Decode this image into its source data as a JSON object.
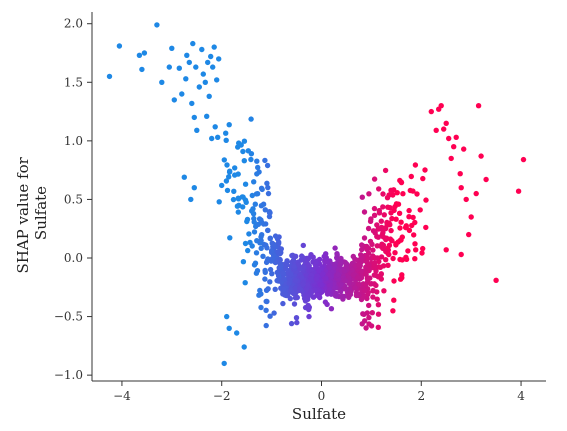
{
  "chart_data": {
    "type": "scatter",
    "title": "",
    "xlabel": "Sulfate",
    "ylabel_lines": [
      "SHAP value for",
      "Sulfate"
    ],
    "xlim": [
      -4.6,
      4.5
    ],
    "ylim": [
      -1.05,
      2.1
    ],
    "x_ticks": [
      -4,
      -2,
      0,
      2,
      4
    ],
    "x_tick_labels": [
      "−4",
      "−2",
      "0",
      "2",
      "4"
    ],
    "y_ticks": [
      -1.0,
      -0.5,
      0.0,
      0.5,
      1.0,
      1.5,
      2.0
    ],
    "y_tick_labels": [
      "−1.0",
      "−0.5",
      "0.0",
      "0.5",
      "1.0",
      "1.5",
      "2.0"
    ],
    "grid": false,
    "legend": "none",
    "color_scale": [
      "#1e88e5",
      "#7b2fd0",
      "#ff0052"
    ],
    "series": [
      {
        "points": [
          [
            -4.25,
            1.55
          ],
          [
            -4.05,
            1.81
          ],
          [
            -3.65,
            1.73
          ],
          [
            -3.6,
            1.61
          ],
          [
            -3.55,
            1.75
          ],
          [
            -3.3,
            1.99
          ],
          [
            -3.2,
            1.5
          ],
          [
            -3.05,
            1.63
          ],
          [
            -3.0,
            1.79
          ],
          [
            -2.95,
            1.35
          ],
          [
            -2.85,
            1.62
          ],
          [
            -2.8,
            1.4
          ],
          [
            -2.72,
            1.53
          ],
          [
            -2.7,
            1.73
          ],
          [
            -2.65,
            1.67
          ],
          [
            -2.6,
            1.32
          ],
          [
            -2.58,
            1.83
          ],
          [
            -2.55,
            1.2
          ],
          [
            -2.52,
            1.63
          ],
          [
            -2.5,
            1.09
          ],
          [
            -2.45,
            1.46
          ],
          [
            -2.4,
            1.78
          ],
          [
            -2.37,
            1.57
          ],
          [
            -2.33,
            1.5
          ],
          [
            -2.3,
            1.21
          ],
          [
            -2.28,
            1.67
          ],
          [
            -2.25,
            1.38
          ],
          [
            -2.22,
            1.72
          ],
          [
            -2.2,
            1.02
          ],
          [
            -2.18,
            1.63
          ],
          [
            -2.15,
            1.8
          ],
          [
            -2.13,
            1.12
          ],
          [
            -2.1,
            1.52
          ],
          [
            -2.08,
            1.03
          ],
          [
            -2.06,
            1.7
          ],
          [
            -2.0,
            0.62
          ],
          [
            -2.05,
            0.48
          ],
          [
            -2.55,
            0.6
          ],
          [
            -2.75,
            0.69
          ],
          [
            -2.62,
            0.5
          ],
          [
            -1.95,
            -0.9
          ],
          [
            -1.55,
            -0.76
          ],
          [
            -1.85,
            -0.6
          ],
          [
            -1.7,
            -0.64
          ],
          [
            -1.9,
            -0.5
          ],
          [
            -0.95,
            -0.47
          ],
          [
            -0.6,
            -0.56
          ],
          [
            -0.5,
            -0.51
          ],
          [
            -0.25,
            -0.5
          ],
          [
            0.5,
            -0.27
          ],
          [
            0.7,
            -0.32
          ],
          [
            1.25,
            -0.28
          ],
          [
            1.45,
            -0.36
          ],
          [
            1.35,
            0.03
          ],
          [
            2.2,
            1.25
          ],
          [
            2.3,
            1.09
          ],
          [
            2.35,
            1.27
          ],
          [
            2.4,
            1.3
          ],
          [
            2.45,
            1.1
          ],
          [
            2.5,
            1.15
          ],
          [
            2.55,
            1.02
          ],
          [
            2.6,
            0.85
          ],
          [
            2.65,
            0.95
          ],
          [
            2.7,
            1.03
          ],
          [
            2.78,
            0.72
          ],
          [
            2.8,
            0.6
          ],
          [
            2.85,
            0.93
          ],
          [
            2.9,
            0.5
          ],
          [
            2.95,
            0.2
          ],
          [
            3.0,
            0.35
          ],
          [
            3.1,
            0.55
          ],
          [
            3.15,
            1.3
          ],
          [
            3.2,
            0.87
          ],
          [
            3.3,
            0.67
          ],
          [
            3.5,
            -0.19
          ],
          [
            3.95,
            0.57
          ],
          [
            4.05,
            0.84
          ],
          [
            2.5,
            0.07
          ],
          [
            2.8,
            0.03
          ]
        ]
      }
    ]
  }
}
